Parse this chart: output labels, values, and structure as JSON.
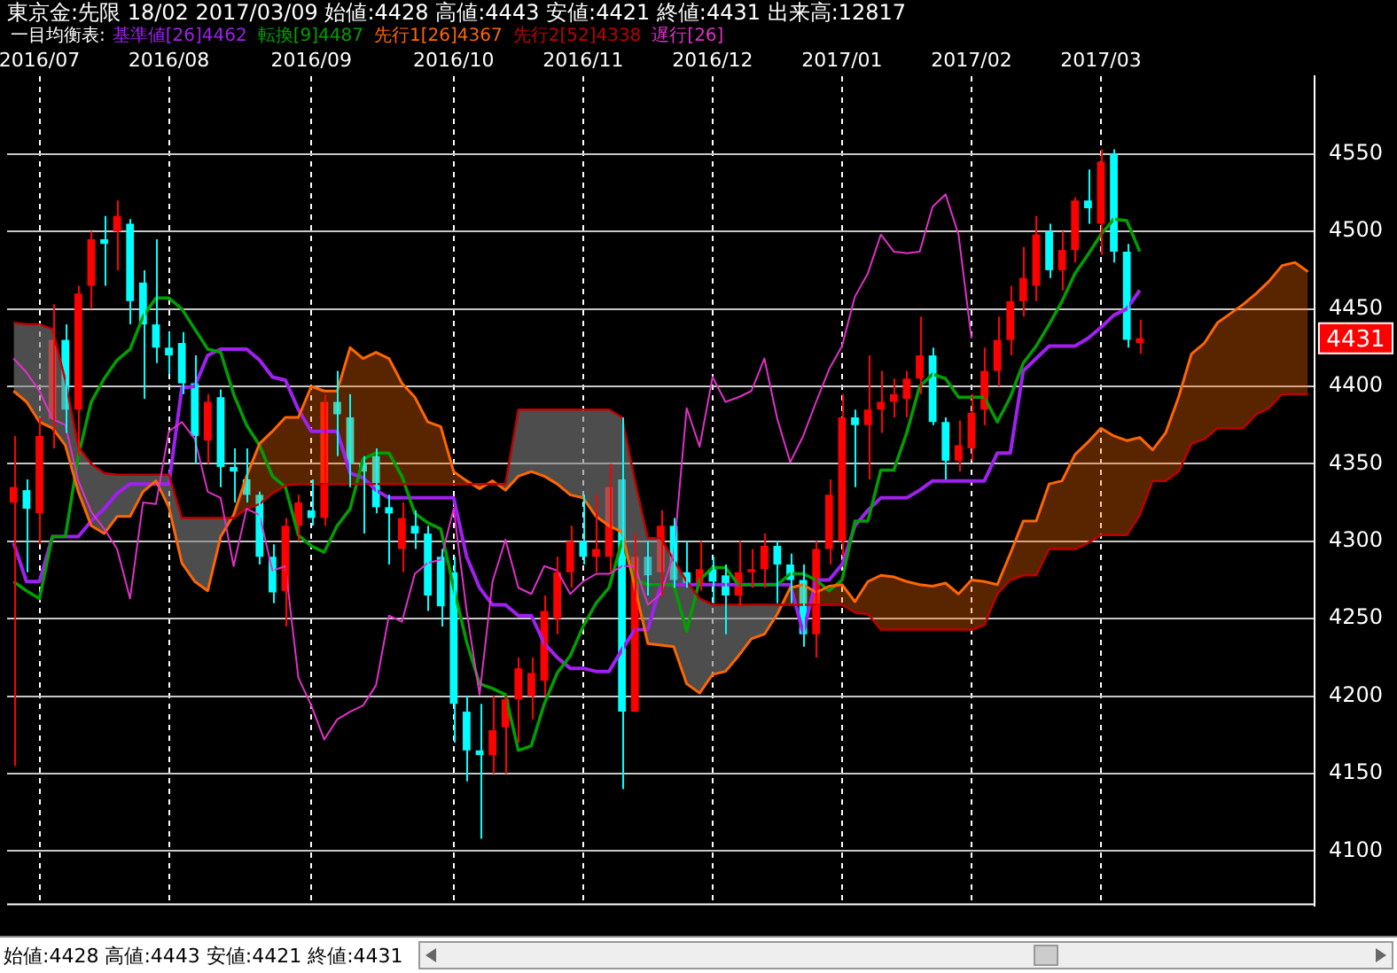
{
  "chart_data": {
    "type": "candlestick",
    "title": "東京金:先限 18/02 2017/03/09 始値:4428 高値:4443 安値:4421 終値:4431 出来高:12817",
    "legend_title": "一目均衡表:",
    "legend": "top left",
    "grid": true,
    "categories": [
      null,
      null,
      "2016/07",
      null,
      null,
      null,
      null,
      null,
      null,
      null,
      null,
      null,
      "2016/08",
      null,
      null,
      null,
      null,
      null,
      null,
      null,
      null,
      null,
      null,
      "2016/09",
      null,
      null,
      null,
      null,
      null,
      null,
      null,
      null,
      null,
      null,
      "2016/10",
      null,
      null,
      null,
      null,
      null,
      null,
      null,
      null,
      null,
      "2016/11",
      null,
      null,
      null,
      null,
      null,
      null,
      null,
      null,
      null,
      "2016/12",
      null,
      null,
      null,
      null,
      null,
      null,
      null,
      null,
      null,
      "2017/01",
      null,
      null,
      null,
      null,
      null,
      null,
      null,
      null,
      null,
      "2017/02",
      null,
      null,
      null,
      null,
      null,
      null,
      null,
      null,
      null,
      "2017/03",
      null,
      null,
      null,
      null,
      null,
      null,
      null,
      null,
      null,
      null,
      null,
      null,
      null,
      null,
      null,
      null
    ],
    "ohlc": [
      [
        4325,
        4368,
        4155,
        4335
      ],
      [
        4333,
        4340,
        4280,
        4321
      ],
      [
        4318,
        4380,
        4298,
        4368
      ],
      [
        4379,
        4453,
        4360,
        4430
      ],
      [
        4430,
        4440,
        4370,
        4385
      ],
      [
        4385,
        4465,
        4355,
        4460
      ],
      [
        4465,
        4500,
        4450,
        4495
      ],
      [
        4495,
        4510,
        4465,
        4492
      ],
      [
        4500,
        4520,
        4475,
        4510
      ],
      [
        4505,
        4508,
        4440,
        4455
      ],
      [
        4467,
        4475,
        4392,
        4440
      ],
      [
        4440,
        4495,
        4415,
        4425
      ],
      [
        4425,
        4435,
        4408,
        4420
      ],
      [
        4428,
        4435,
        4395,
        4402
      ],
      [
        4402,
        4420,
        4350,
        4368
      ],
      [
        4365,
        4395,
        4350,
        4390
      ],
      [
        4393,
        4398,
        4335,
        4348
      ],
      [
        4348,
        4360,
        4325,
        4345
      ],
      [
        4340,
        4360,
        4325,
        4330
      ],
      [
        4330,
        4332,
        4285,
        4290
      ],
      [
        4290,
        4298,
        4260,
        4267
      ],
      [
        4268,
        4315,
        4245,
        4310
      ],
      [
        4310,
        4330,
        4300,
        4325
      ],
      [
        4320,
        4340,
        4310,
        4315
      ],
      [
        4315,
        4395,
        4310,
        4390
      ],
      [
        4390,
        4410,
        4355,
        4382
      ],
      [
        4380,
        4395,
        4335,
        4350
      ],
      [
        4350,
        4355,
        4305,
        4345
      ],
      [
        4355,
        4360,
        4318,
        4322
      ],
      [
        4322,
        4330,
        4285,
        4318
      ],
      [
        4295,
        4325,
        4280,
        4315
      ],
      [
        4310,
        4320,
        4295,
        4305
      ],
      [
        4305,
        4310,
        4255,
        4265
      ],
      [
        4290,
        4295,
        4245,
        4258
      ],
      [
        4280,
        4290,
        4170,
        4195
      ],
      [
        4190,
        4200,
        4145,
        4165
      ],
      [
        4165,
        4195,
        4108,
        4162
      ],
      [
        4162,
        4200,
        4150,
        4178
      ],
      [
        4180,
        4200,
        4150,
        4198
      ],
      [
        4198,
        4225,
        4170,
        4218
      ],
      [
        4200,
        4225,
        4185,
        4215
      ],
      [
        4210,
        4265,
        4200,
        4255
      ],
      [
        4250,
        4290,
        4240,
        4280
      ],
      [
        4280,
        4310,
        4270,
        4300
      ],
      [
        4300,
        4330,
        4285,
        4290
      ],
      [
        4290,
        4330,
        4280,
        4295
      ],
      [
        4290,
        4350,
        4280,
        4335
      ],
      [
        4340,
        4380,
        4140,
        4190
      ],
      [
        4190,
        4305,
        4190,
        4290
      ],
      [
        4290,
        4300,
        4265,
        4278
      ],
      [
        4280,
        4320,
        4265,
        4310
      ],
      [
        4310,
        4315,
        4270,
        4275
      ],
      [
        4280,
        4300,
        4270,
        4273
      ],
      [
        4272,
        4300,
        4268,
        4282
      ],
      [
        4282,
        4290,
        4260,
        4274
      ],
      [
        4278,
        4285,
        4240,
        4265
      ],
      [
        4265,
        4300,
        4258,
        4280
      ],
      [
        4280,
        4295,
        4270,
        4282
      ],
      [
        4282,
        4305,
        4270,
        4297
      ],
      [
        4297,
        4300,
        4260,
        4285
      ],
      [
        4285,
        4292,
        4260,
        4275
      ],
      [
        4275,
        4285,
        4232,
        4240
      ],
      [
        4240,
        4300,
        4225,
        4295
      ],
      [
        4295,
        4340,
        4285,
        4330
      ],
      [
        4300,
        4395,
        4290,
        4380
      ],
      [
        4380,
        4385,
        4335,
        4375
      ],
      [
        4375,
        4420,
        4340,
        4385
      ],
      [
        4385,
        4410,
        4370,
        4390
      ],
      [
        4390,
        4405,
        4380,
        4395
      ],
      [
        4392,
        4410,
        4380,
        4405
      ],
      [
        4405,
        4445,
        4395,
        4420
      ],
      [
        4420,
        4425,
        4375,
        4377
      ],
      [
        4377,
        4380,
        4340,
        4352
      ],
      [
        4352,
        4378,
        4345,
        4362
      ],
      [
        4360,
        4395,
        4352,
        4383
      ],
      [
        4385,
        4425,
        4375,
        4410
      ],
      [
        4410,
        4445,
        4400,
        4430
      ],
      [
        4430,
        4465,
        4420,
        4455
      ],
      [
        4455,
        4490,
        4445,
        4470
      ],
      [
        4465,
        4510,
        4455,
        4498
      ],
      [
        4500,
        4505,
        4470,
        4475
      ],
      [
        4475,
        4500,
        4462,
        4488
      ],
      [
        4488,
        4522,
        4480,
        4520
      ],
      [
        4520,
        4540,
        4505,
        4515
      ],
      [
        4505,
        4553,
        4485,
        4545
      ],
      [
        4550,
        4553,
        4480,
        4487
      ],
      [
        4487,
        4492,
        4425,
        4430
      ],
      [
        4428,
        4443,
        4421,
        4431
      ],
      null,
      null,
      null,
      null,
      null,
      null,
      null,
      null,
      null,
      null,
      null,
      null,
      null
    ],
    "colors": [
      "#ff0000",
      "#00ffff",
      "#ff0000",
      "#ff0000",
      "#00ffff",
      "#ff0000",
      "#ff0000",
      "#00ffff",
      "#ff0000",
      "#00ffff",
      "#00ffff",
      "#00ffff",
      "#00ffff",
      "#00ffff",
      "#00ffff",
      "#ff0000",
      "#00ffff",
      "#00ffff",
      "#00ffff",
      "#00ffff",
      "#00ffff",
      "#ff0000",
      "#ff0000",
      "#00ffff",
      "#ff0000",
      "#00ffff",
      "#00ffff",
      "#00ffff",
      "#00ffff",
      "#00ffff",
      "#ff0000",
      "#00ffff",
      "#00ffff",
      "#00ffff",
      "#00ffff",
      "#00ffff",
      "#00ffff",
      "#ff0000",
      "#ff0000",
      "#ff0000",
      "#ff0000",
      "#ff0000",
      "#ff0000",
      "#ff0000",
      "#00ffff",
      "#ff0000",
      "#ff0000",
      "#00ffff",
      "#ff0000",
      "#00ffff",
      "#ff0000",
      "#00ffff",
      "#00ffff",
      "#ff0000",
      "#00ffff",
      "#00ffff",
      "#ff0000",
      "#ff0000",
      "#ff0000",
      "#00ffff",
      "#00ffff",
      "#00ffff",
      "#ff0000",
      "#ff0000",
      "#ff0000",
      "#00ffff",
      "#ff0000",
      "#ff0000",
      "#ff0000",
      "#ff0000",
      "#ff0000",
      "#00ffff",
      "#00ffff",
      "#ff0000",
      "#ff0000",
      "#ff0000",
      "#ff0000",
      "#ff0000",
      "#ff0000",
      "#ff0000",
      "#00ffff",
      "#ff0000",
      "#ff0000",
      "#00ffff",
      "#ff0000",
      "#00ffff",
      "#00ffff",
      "#ff0000",
      null,
      null,
      null,
      null,
      null,
      null,
      null,
      null,
      null,
      null,
      null,
      null,
      null
    ],
    "series": [
      {
        "name": "基準値[26]4462",
        "type": "line",
        "color": "#a020f0",
        "values": [
          4299,
          4274,
          4274,
          4303,
          4303,
          4303,
          4313,
          4321,
          4331,
          4337,
          4337,
          4337,
          4337,
          4399,
          4400,
          4420,
          4424,
          4424,
          4424,
          4417,
          4406,
          4404,
          4385,
          4371,
          4371,
          4371,
          4344,
          4341,
          4333,
          4328,
          4328,
          4328,
          4328,
          4328,
          4328,
          4290,
          4270,
          4259,
          4259,
          4252,
          4252,
          4234,
          4225,
          4218,
          4218,
          4216,
          4216,
          4230,
          4243,
          4243,
          4272,
          4272,
          4272,
          4272,
          4272,
          4272,
          4272,
          4272,
          4272,
          4272,
          4272,
          4241,
          4275,
          4275,
          4285,
          4310,
          4320,
          4328,
          4328,
          4328,
          4333,
          4339,
          4339,
          4339,
          4339,
          4339,
          4357,
          4357,
          4410,
          4418,
          4426,
          4426,
          4426,
          4431,
          4438,
          4446,
          4450,
          4462,
          null,
          null,
          null,
          null,
          null,
          null,
          null,
          null,
          null,
          null,
          null,
          null,
          null
        ]
      },
      {
        "name": "転換[9]4487",
        "type": "line",
        "color": "#00a000",
        "values": [
          4274,
          4268,
          4263,
          4303,
          4303,
          4355,
          4390,
          4405,
          4417,
          4424,
          4445,
          4457,
          4457,
          4450,
          4437,
          4424,
          4422,
          4395,
          4375,
          4362,
          4342,
          4335,
          4304,
          4297,
          4293,
          4310,
          4321,
          4353,
          4357,
          4357,
          4342,
          4318,
          4312,
          4308,
          4270,
          4235,
          4208,
          4205,
          4201,
          4165,
          4168,
          4195,
          4215,
          4226,
          4245,
          4260,
          4270,
          4300,
          4275,
          4272,
          4272,
          4272,
          4242,
          4275,
          4283,
          4283,
          4272,
          4272,
          4272,
          4272,
          4279,
          4279,
          4275,
          4268,
          4275,
          4313,
          4313,
          4346,
          4346,
          4370,
          4400,
          4408,
          4405,
          4393,
          4393,
          4393,
          4377,
          4393,
          4415,
          4426,
          4440,
          4455,
          4473,
          4485,
          4498,
          4508,
          4507,
          4487,
          null,
          null,
          null,
          null,
          null,
          null,
          null,
          null,
          null,
          null,
          null,
          null,
          null
        ]
      },
      {
        "name": "先行1[26]4367",
        "type": "line",
        "color": "#ff6600",
        "values": [
          4397,
          4390,
          4377,
          4373,
          4362,
          4332,
          4310,
          4305,
          4316,
          4316,
          4332,
          4339,
          4322,
          4286,
          4274,
          4268,
          4303,
          4317,
          4342,
          4363,
          4371,
          4380,
          4380,
          4400,
          4397,
          4397,
          4425,
          4418,
          4422,
          4418,
          4402,
          4393,
          4377,
          4374,
          4345,
          4339,
          4334,
          4339,
          4333,
          4342,
          4345,
          4342,
          4337,
          4330,
          4328,
          4316,
          4310,
          4306,
          4270,
          4234,
          4233,
          4232,
          4208,
          4202,
          4214,
          4216,
          4226,
          4237,
          4240,
          4253,
          4270,
          4272,
          4267,
          4271,
          4272,
          4261,
          4274,
          4278,
          4277,
          4274,
          4272,
          4271,
          4273,
          4266,
          4275,
          4274,
          4272,
          4292,
          4313,
          4313,
          4337,
          4339,
          4356,
          4364,
          4373,
          4368,
          4365,
          4367,
          4359,
          4370,
          4393,
          4421,
          4428,
          4441,
          4447,
          4453,
          4460,
          4468,
          4478,
          4480,
          4474
        ],
        "upper": [
          4397,
          4390,
          4377,
          4373,
          4362,
          4332,
          4310,
          4305,
          4316,
          4316,
          4332,
          4339,
          4322,
          4286,
          4274,
          4268,
          4303,
          4317,
          4342,
          4363,
          4371,
          4380,
          4380,
          4400,
          4397,
          4397,
          4425,
          4418,
          4422,
          4418,
          4402,
          4393,
          4377,
          4374,
          4345,
          4339,
          4334,
          4339,
          4333,
          4342,
          4345,
          4342,
          4337,
          4330,
          4328,
          4316,
          4310,
          4306,
          4270,
          4234,
          4233,
          4232,
          4208,
          4202,
          4214,
          4216,
          4226,
          4237,
          4240,
          4253,
          4270,
          4272,
          4267,
          4271,
          4272,
          4261,
          4274,
          4278,
          4277,
          4274,
          4272,
          4271,
          4273,
          4266,
          4275,
          4274,
          4272,
          4292,
          4313,
          4313,
          4337,
          4339,
          4356,
          4364,
          4373,
          4368,
          4365,
          4367,
          4359,
          4370,
          4393,
          4421,
          4428,
          4441,
          4447,
          4453,
          4460,
          4468,
          4478,
          4480,
          4474
        ],
        "lower": [
          4441,
          4440,
          4440,
          4437,
          4404,
          4361,
          4350,
          4344,
          4343,
          4343,
          4343,
          4343,
          4343,
          4315,
          4315,
          4315,
          4315,
          4315,
          4321,
          4324,
          4331,
          4336,
          4337,
          4337,
          4337,
          4337,
          4337,
          4337,
          4337,
          4337,
          4337,
          4337,
          4337,
          4337,
          4337,
          4337,
          4337,
          4337,
          4337,
          4385,
          4385,
          4385,
          4385,
          4385,
          4385,
          4385,
          4385,
          4380,
          4339,
          4302,
          4302,
          4288,
          4274,
          4263,
          4259,
          4259,
          4259,
          4259,
          4259,
          4259,
          4259,
          4259,
          4259,
          4259,
          4259,
          4254,
          4253,
          4243,
          4243,
          4243,
          4243,
          4243,
          4243,
          4243,
          4243,
          4246,
          4266,
          4275,
          4278,
          4278,
          4295,
          4295,
          4295,
          4299,
          4304,
          4304,
          4304,
          4317,
          4339,
          4339,
          4345,
          4363,
          4366,
          4373,
          4373,
          4373,
          4382,
          4386,
          4395,
          4395,
          4395
        ]
      },
      {
        "name": "先行2[52]4338",
        "type": "line",
        "color": "#c00000",
        "values": [
          4441,
          4440,
          4440,
          4437,
          4404,
          4361,
          4350,
          4344,
          4343,
          4343,
          4343,
          4343,
          4343,
          4315,
          4315,
          4315,
          4315,
          4315,
          4321,
          4324,
          4331,
          4336,
          4337,
          4337,
          4337,
          4337,
          4337,
          4337,
          4337,
          4337,
          4337,
          4337,
          4337,
          4337,
          4337,
          4337,
          4337,
          4337,
          4337,
          4385,
          4385,
          4385,
          4385,
          4385,
          4385,
          4385,
          4385,
          4380,
          4339,
          4302,
          4302,
          4288,
          4274,
          4263,
          4259,
          4259,
          4259,
          4259,
          4259,
          4259,
          4259,
          4259,
          4259,
          4259,
          4259,
          4254,
          4253,
          4243,
          4243,
          4243,
          4243,
          4243,
          4243,
          4243,
          4243,
          4246,
          4266,
          4275,
          4278,
          4278,
          4295,
          4295,
          4295,
          4299,
          4304,
          4304,
          4304,
          4317,
          4339,
          4339,
          4345,
          4363,
          4366,
          4373,
          4373,
          4373,
          4382,
          4386,
          4395,
          4395,
          4395
        ]
      },
      {
        "name": "遅行[26]",
        "type": "line",
        "color": "#e030c8",
        "values": [
          4418,
          4409,
          4397,
          4379,
          4375,
          4339,
          4319,
          4308,
          4295,
          4263,
          4325,
          4324,
          4371,
          4377,
          4366,
          4332,
          4328,
          4284,
          4321,
          4317,
          4281,
          4284,
          4212,
          4194,
          4172,
          4185,
          4190,
          4194,
          4207,
          4252,
          4248,
          4279,
          4286,
          4288,
          4321,
          4255,
          4201,
          4274,
          4301,
          4270,
          4266,
          4284,
          4281,
          4266,
          4274,
          4279,
          4279,
          4284,
          4284,
          4259,
          4266,
          4292,
          4386,
          4361,
          4406,
          4390,
          4393,
          4397,
          4418,
          4379,
          4351,
          4368,
          4390,
          4411,
          4426,
          4458,
          4473,
          4498,
          4487,
          4486,
          4487,
          4516,
          4524,
          4498,
          4431,
          null,
          null,
          null,
          null,
          null,
          null,
          null,
          null,
          null,
          null,
          null,
          null,
          null,
          null,
          null,
          null,
          null,
          null,
          null,
          null,
          null,
          null,
          null,
          null,
          null,
          null
        ]
      }
    ],
    "ylim": [
      4065,
      4600
    ],
    "yticks": [
      4100,
      4150,
      4200,
      4250,
      4300,
      4350,
      4400,
      4450,
      4500,
      4550
    ],
    "annotations": [
      "始値:4428 高値:4443 安値:4421 終値:4431",
      {
        "text": "4431",
        "y": 4431
      }
    ]
  }
}
